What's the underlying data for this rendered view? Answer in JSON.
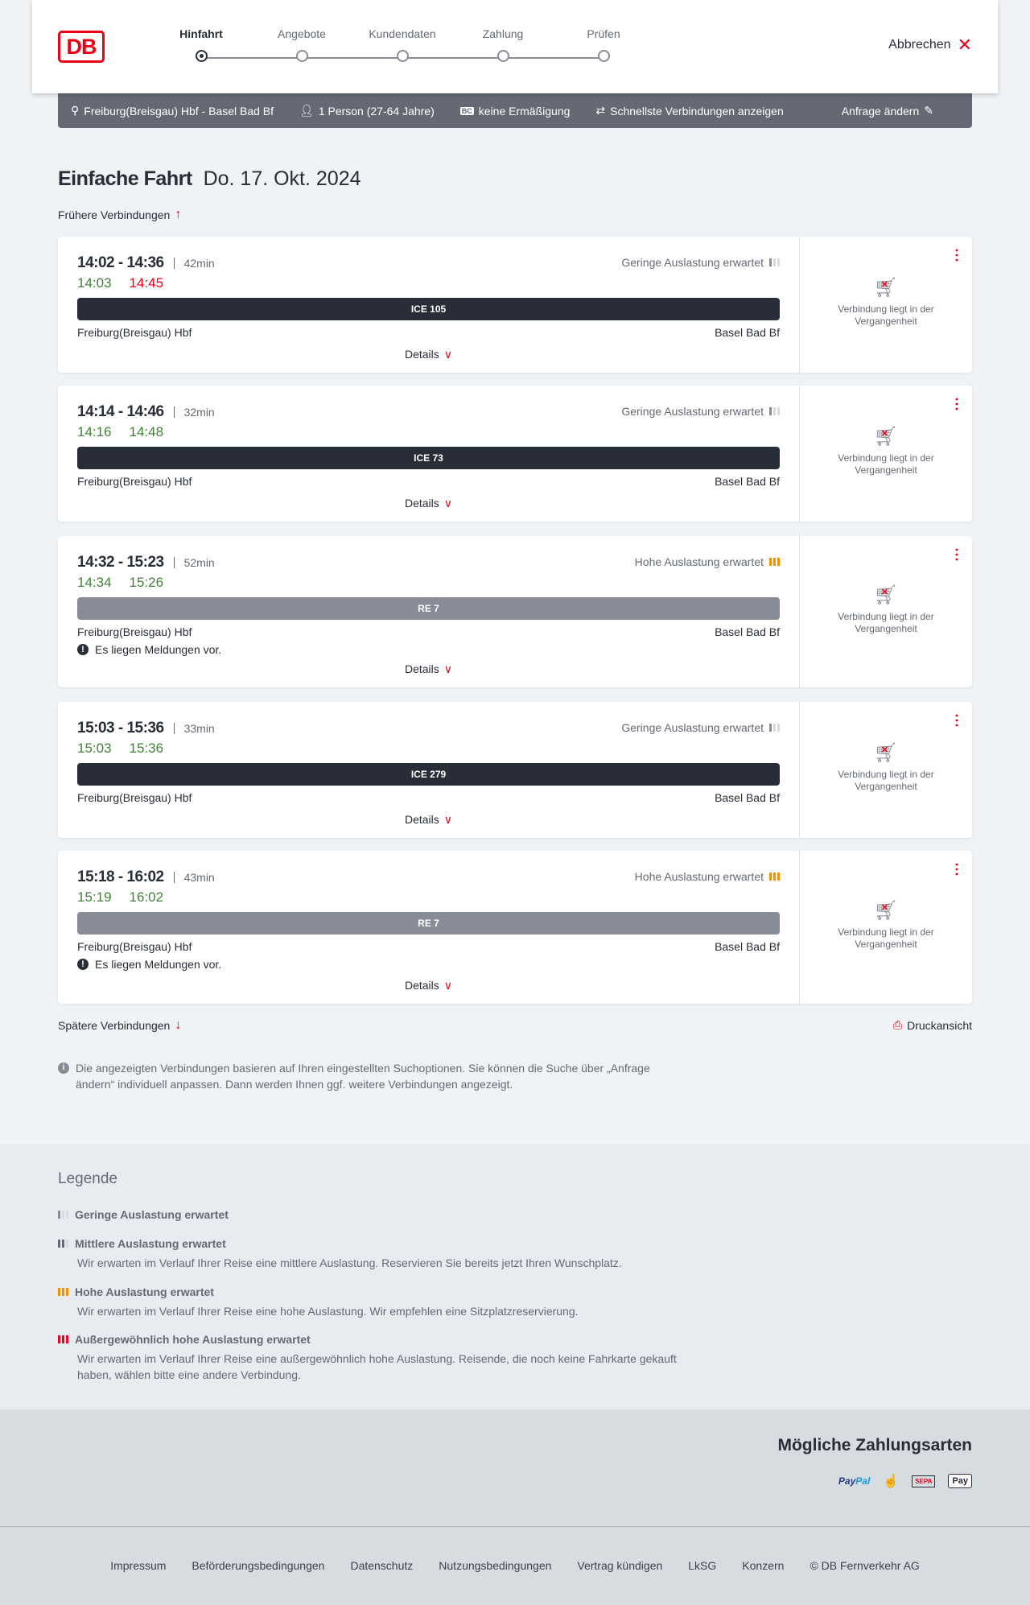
{
  "header": {
    "logo": "DB",
    "steps": [
      "Hinfahrt",
      "Angebote",
      "Kundendaten",
      "Zahlung",
      "Prüfen"
    ],
    "active_step": 0,
    "cancel": "Abbrechen"
  },
  "summary": {
    "route": "Freiburg(Breisgau) Hbf - Basel Bad Bf",
    "travellers": "1 Person (27-64 Jahre)",
    "discount": "keine Ermäßigung",
    "option": "Schnellste Verbindungen anzeigen",
    "change": "Anfrage ändern"
  },
  "page": {
    "title": "Einfache Fahrt",
    "date": "Do. 17. Okt. 2024",
    "earlier": "Frühere Verbindungen",
    "later": "Spätere Verbindungen",
    "print": "Druckansicht"
  },
  "connections": [
    {
      "times": "14:02 - 14:36",
      "duration": "42min",
      "rt_dep": "14:03",
      "rt_arr": "14:45",
      "arr_late": true,
      "load": "Geringe Auslastung erwartet",
      "load_level": "low",
      "train": "ICE 105",
      "from": "Freiburg(Breisgau) Hbf",
      "to": "Basel Bad Bf",
      "message": "",
      "details": "Details",
      "status": "Verbindung liegt in der Vergangenheit"
    },
    {
      "times": "14:14 - 14:46",
      "duration": "32min",
      "rt_dep": "14:16",
      "rt_arr": "14:48",
      "arr_late": false,
      "load": "Geringe Auslastung erwartet",
      "load_level": "low",
      "train": "ICE 73",
      "from": "Freiburg(Breisgau) Hbf",
      "to": "Basel Bad Bf",
      "message": "",
      "details": "Details",
      "status": "Verbindung liegt in der Vergangenheit"
    },
    {
      "times": "14:32 - 15:23",
      "duration": "52min",
      "rt_dep": "14:34",
      "rt_arr": "15:26",
      "arr_late": false,
      "load": "Hohe Auslastung erwartet",
      "load_level": "high",
      "train": "RE 7",
      "from": "Freiburg(Breisgau) Hbf",
      "to": "Basel Bad Bf",
      "message": "Es liegen Meldungen vor.",
      "details": "Details",
      "status": "Verbindung liegt in der Vergangenheit"
    },
    {
      "times": "15:03 - 15:36",
      "duration": "33min",
      "rt_dep": "15:03",
      "rt_arr": "15:36",
      "arr_late": false,
      "load": "Geringe Auslastung erwartet",
      "load_level": "low",
      "train": "ICE 279",
      "from": "Freiburg(Breisgau) Hbf",
      "to": "Basel Bad Bf",
      "message": "",
      "details": "Details",
      "status": "Verbindung liegt in der Vergangenheit"
    },
    {
      "times": "15:18 - 16:02",
      "duration": "43min",
      "rt_dep": "15:19",
      "rt_arr": "16:02",
      "arr_late": false,
      "load": "Hohe Auslastung erwartet",
      "load_level": "high",
      "train": "RE 7",
      "from": "Freiburg(Breisgau) Hbf",
      "to": "Basel Bad Bf",
      "message": "Es liegen Meldungen vor.",
      "details": "Details",
      "status": "Verbindung liegt in der Vergangenheit"
    }
  ],
  "info": "Die angezeigten Verbindungen basieren auf Ihren eingestellten Suchoptionen. Sie können die Suche über „Anfrage ändern“ individuell anpassen. Dann werden Ihnen ggf. weitere Verbindungen angezeigt.",
  "legend": {
    "title": "Legende",
    "items": [
      {
        "title": "Geringe Auslastung erwartet",
        "text": "",
        "level": "low"
      },
      {
        "title": "Mittlere Auslastung erwartet",
        "text": "Wir erwarten im Verlauf Ihrer Reise eine mittlere Auslastung. Reservieren Sie bereits jetzt Ihren Wunschplatz.",
        "level": "mid"
      },
      {
        "title": "Hohe Auslastung erwartet",
        "text": "Wir erwarten im Verlauf Ihrer Reise eine hohe Auslastung. Wir empfehlen eine Sitzplatzreservierung.",
        "level": "high"
      },
      {
        "title": "Außergewöhnlich hohe Auslastung erwartet",
        "text": "Wir erwarten im Verlauf Ihrer Reise eine außergewöhnlich hohe Auslastung. Reisende, die noch keine Fahrkarte gekauft haben, wählen bitte eine andere Verbindung.",
        "level": "vhigh"
      }
    ]
  },
  "payment": {
    "title": "Mögliche Zahlungsarten",
    "methods": [
      "PayPal",
      "Kreditkarte",
      "SEPA",
      "Apple Pay"
    ],
    "paypal_a": "Pay",
    "paypal_b": "Pal",
    "sepa": "SEPA",
    "apple": "Pay"
  },
  "footer": [
    "Impressum",
    "Beförderungsbedingungen",
    "Datenschutz",
    "Nutzungsbedingungen",
    "Vertrag kündigen",
    "LkSG",
    "Konzern",
    "© DB Fernverkehr AG"
  ],
  "colors": {
    "brand": "#ec0016",
    "on_time": "#408335",
    "delay": "#ec0016",
    "high_load": "#f39200",
    "summary_bg": "#646973"
  }
}
